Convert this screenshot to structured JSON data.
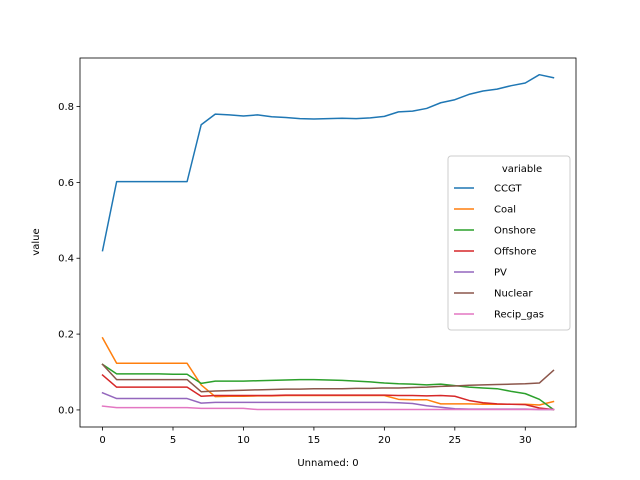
{
  "chart_data": {
    "type": "line",
    "title": "",
    "xlabel": "Unnamed: 0",
    "ylabel": "value",
    "xlim": [
      -1.6,
      33.6
    ],
    "ylim": [
      -0.045,
      0.928
    ],
    "xticks": [
      0,
      5,
      10,
      15,
      20,
      25,
      30
    ],
    "yticks": [
      0.0,
      0.2,
      0.4,
      0.6,
      0.8
    ],
    "ytick_labels": [
      "0.0",
      "0.2",
      "0.4",
      "0.6",
      "0.8"
    ],
    "grid": false,
    "legend": {
      "title": "variable",
      "placement": "center-right"
    },
    "x": [
      0,
      1,
      2,
      3,
      4,
      5,
      6,
      7,
      8,
      9,
      10,
      11,
      12,
      13,
      14,
      15,
      16,
      17,
      18,
      19,
      20,
      21,
      22,
      23,
      24,
      25,
      26,
      27,
      28,
      29,
      30,
      31,
      32
    ],
    "series": [
      {
        "name": "CCGT",
        "color": "#1f77b4",
        "values": [
          0.42,
          0.602,
          0.602,
          0.602,
          0.602,
          0.602,
          0.602,
          0.752,
          0.78,
          0.778,
          0.775,
          0.778,
          0.773,
          0.771,
          0.768,
          0.767,
          0.768,
          0.769,
          0.768,
          0.77,
          0.774,
          0.786,
          0.788,
          0.795,
          0.81,
          0.818,
          0.832,
          0.841,
          0.846,
          0.855,
          0.862,
          0.884,
          0.876
        ]
      },
      {
        "name": "Coal",
        "color": "#ff7f0e",
        "values": [
          0.19,
          0.123,
          0.123,
          0.123,
          0.123,
          0.123,
          0.123,
          0.066,
          0.035,
          0.036,
          0.036,
          0.037,
          0.037,
          0.038,
          0.038,
          0.038,
          0.038,
          0.038,
          0.038,
          0.038,
          0.038,
          0.028,
          0.027,
          0.027,
          0.016,
          0.016,
          0.016,
          0.015,
          0.015,
          0.015,
          0.015,
          0.013,
          0.022
        ]
      },
      {
        "name": "Onshore",
        "color": "#2ca02c",
        "values": [
          0.12,
          0.095,
          0.095,
          0.095,
          0.095,
          0.094,
          0.094,
          0.07,
          0.076,
          0.076,
          0.076,
          0.077,
          0.078,
          0.079,
          0.08,
          0.08,
          0.079,
          0.078,
          0.076,
          0.074,
          0.071,
          0.069,
          0.068,
          0.066,
          0.068,
          0.064,
          0.06,
          0.058,
          0.056,
          0.049,
          0.043,
          0.028,
          0.001
        ]
      },
      {
        "name": "Offshore",
        "color": "#d62728",
        "values": [
          0.092,
          0.06,
          0.06,
          0.06,
          0.06,
          0.06,
          0.06,
          0.036,
          0.038,
          0.038,
          0.038,
          0.038,
          0.038,
          0.039,
          0.039,
          0.039,
          0.039,
          0.039,
          0.039,
          0.039,
          0.039,
          0.038,
          0.038,
          0.037,
          0.038,
          0.036,
          0.025,
          0.019,
          0.016,
          0.015,
          0.014,
          0.005,
          0.001
        ]
      },
      {
        "name": "PV",
        "color": "#9467bd",
        "values": [
          0.045,
          0.03,
          0.03,
          0.03,
          0.03,
          0.03,
          0.03,
          0.018,
          0.02,
          0.02,
          0.02,
          0.02,
          0.02,
          0.02,
          0.02,
          0.02,
          0.02,
          0.02,
          0.02,
          0.02,
          0.02,
          0.019,
          0.017,
          0.011,
          0.007,
          0.003,
          0.002,
          0.002,
          0.002,
          0.002,
          0.002,
          0.001,
          0.001
        ]
      },
      {
        "name": "Nuclear",
        "color": "#8c564b",
        "values": [
          0.12,
          0.08,
          0.08,
          0.08,
          0.08,
          0.08,
          0.08,
          0.048,
          0.05,
          0.051,
          0.052,
          0.053,
          0.054,
          0.055,
          0.055,
          0.056,
          0.056,
          0.056,
          0.057,
          0.057,
          0.058,
          0.058,
          0.059,
          0.06,
          0.062,
          0.063,
          0.065,
          0.066,
          0.067,
          0.068,
          0.069,
          0.071,
          0.104
        ]
      },
      {
        "name": "Recip_gas",
        "color": "#e377c2",
        "values": [
          0.01,
          0.006,
          0.006,
          0.006,
          0.006,
          0.006,
          0.006,
          0.004,
          0.004,
          0.004,
          0.004,
          0.001,
          0.001,
          0.001,
          0.001,
          0.001,
          0.001,
          0.001,
          0.001,
          0.001,
          0.001,
          0.001,
          0.001,
          0.001,
          0.001,
          0.001,
          0.001,
          0.001,
          0.001,
          0.001,
          0.001,
          0.001,
          0.001
        ]
      }
    ]
  }
}
